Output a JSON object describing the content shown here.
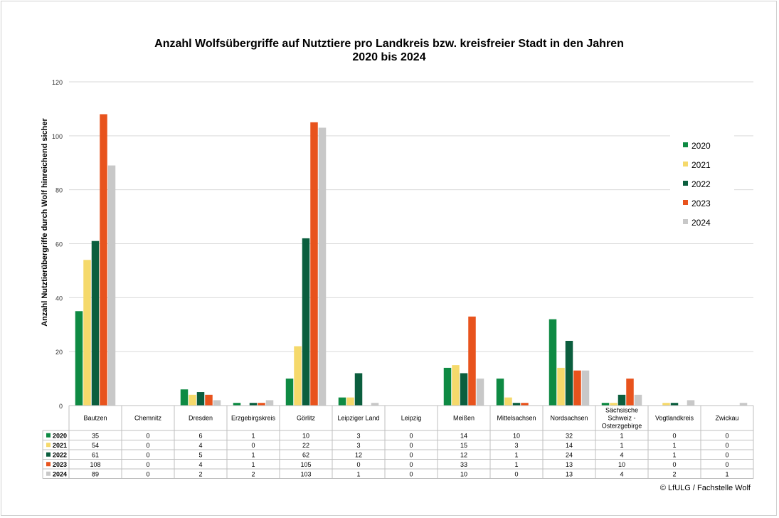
{
  "credit": "© LfULG / Fachstelle Wolf",
  "chart_data": {
    "type": "bar",
    "title": "Anzahl Wolfsübergriffe auf Nutztiere pro Landkreis bzw. kreisfreier Stadt in den Jahren 2020 bis 2024",
    "title_lines": [
      "Anzahl Wolfsübergriffe auf Nutztiere pro Landkreis bzw. kreisfreier Stadt in den Jahren",
      "2020 bis 2024"
    ],
    "ylabel": "Anzahl Nutztierübergriffe durch Wolf hinreichend sicher",
    "xlabel": "",
    "ylim": [
      0,
      120
    ],
    "yticks": [
      0,
      20,
      40,
      60,
      80,
      100,
      120
    ],
    "grid": true,
    "legend_position": "right",
    "data_table": true,
    "categories": [
      "Bautzen",
      "Chemnitz",
      "Dresden",
      "Erzgebirgskreis",
      "Görlitz",
      "Leipziger Land",
      "Leipzig",
      "Meißen",
      "Mittelsachsen",
      "Nordsachsen",
      "Sächsische Schweiz - Osterzgebirge",
      "Vogtlandkreis",
      "Zwickau"
    ],
    "category_lines": [
      [
        "Bautzen"
      ],
      [
        "Chemnitz"
      ],
      [
        "Dresden"
      ],
      [
        "Erzgebirgskreis"
      ],
      [
        "Görlitz"
      ],
      [
        "Leipziger Land"
      ],
      [
        "Leipzig"
      ],
      [
        "Meißen"
      ],
      [
        "Mittelsachsen"
      ],
      [
        "Nordsachsen"
      ],
      [
        "Sächsische",
        "Schweiz -",
        "Osterzgebirge"
      ],
      [
        "Vogtlandkreis"
      ],
      [
        "Zwickau"
      ]
    ],
    "series": [
      {
        "name": "2020",
        "color": "#0e8a43",
        "values": [
          35,
          0,
          6,
          1,
          10,
          3,
          0,
          14,
          10,
          32,
          1,
          0,
          0
        ]
      },
      {
        "name": "2021",
        "color": "#f5d96b",
        "values": [
          54,
          0,
          4,
          0,
          22,
          3,
          0,
          15,
          3,
          14,
          1,
          1,
          0
        ]
      },
      {
        "name": "2022",
        "color": "#0b5e3e",
        "values": [
          61,
          0,
          5,
          1,
          62,
          12,
          0,
          12,
          1,
          24,
          4,
          1,
          0
        ]
      },
      {
        "name": "2023",
        "color": "#e8531d",
        "values": [
          108,
          0,
          4,
          1,
          105,
          0,
          0,
          33,
          1,
          13,
          10,
          0,
          0
        ]
      },
      {
        "name": "2024",
        "color": "#c8c8c8",
        "values": [
          89,
          0,
          2,
          2,
          103,
          1,
          0,
          10,
          0,
          13,
          4,
          2,
          1
        ]
      }
    ]
  }
}
